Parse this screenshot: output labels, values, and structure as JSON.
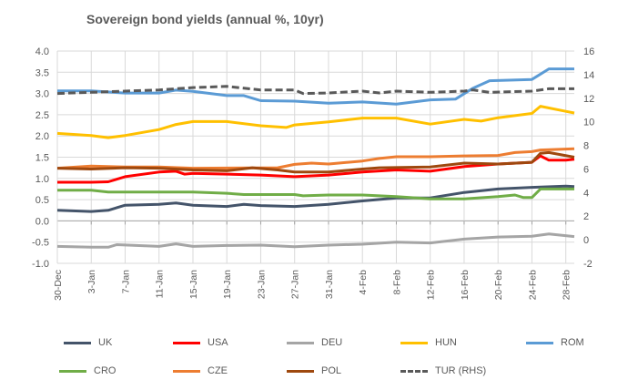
{
  "chart_data": {
    "type": "line",
    "title": "Sovereign bond yields (annual %, 10yr)",
    "xlabel": "",
    "ylabel": "",
    "x_ticks": [
      "30-Dec",
      "3-Jan",
      "7-Jan",
      "11-Jan",
      "15-Jan",
      "19-Jan",
      "23-Jan",
      "27-Jan",
      "31-Jan",
      "4-Feb",
      "8-Feb",
      "12-Feb",
      "16-Feb",
      "20-Feb",
      "24-Feb",
      "28-Feb"
    ],
    "x_range": [
      "30-Dec",
      "1-Mar"
    ],
    "ylim": [
      -1.0,
      4.0
    ],
    "y_ticks": [
      "-1.0",
      "-0.5",
      "0.0",
      "0.5",
      "1.0",
      "1.5",
      "2.0",
      "2.5",
      "3.0",
      "3.5",
      "4.0"
    ],
    "y2lim": [
      -2,
      16
    ],
    "y2_ticks": [
      "-2",
      "0",
      "2",
      "4",
      "6",
      "8",
      "10",
      "12",
      "14",
      "16"
    ],
    "grid": true,
    "legend": "bottom",
    "series": [
      {
        "name": "UK",
        "color": "#44546a",
        "axis": "left",
        "points": [
          [
            "30-Dec",
            0.25
          ],
          [
            "3-Jan",
            0.22
          ],
          [
            "5-Jan",
            0.25
          ],
          [
            "7-Jan",
            0.37
          ],
          [
            "11-Jan",
            0.39
          ],
          [
            "13-Jan",
            0.42
          ],
          [
            "15-Jan",
            0.37
          ],
          [
            "19-Jan",
            0.34
          ],
          [
            "21-Jan",
            0.39
          ],
          [
            "23-Jan",
            0.36
          ],
          [
            "27-Jan",
            0.34
          ],
          [
            "31-Jan",
            0.39
          ],
          [
            "4-Feb",
            0.47
          ],
          [
            "8-Feb",
            0.54
          ],
          [
            "12-Feb",
            0.54
          ],
          [
            "16-Feb",
            0.67
          ],
          [
            "20-Feb",
            0.75
          ],
          [
            "24-Feb",
            0.79
          ],
          [
            "28-Feb",
            0.82
          ],
          [
            "1-Mar",
            0.81
          ]
        ]
      },
      {
        "name": "USA",
        "color": "#ff0000",
        "axis": "left",
        "points": [
          [
            "30-Dec",
            0.91
          ],
          [
            "3-Jan",
            0.91
          ],
          [
            "5-Jan",
            0.92
          ],
          [
            "7-Jan",
            1.04
          ],
          [
            "11-Jan",
            1.15
          ],
          [
            "13-Jan",
            1.17
          ],
          [
            "14-Jan",
            1.1
          ],
          [
            "15-Jan",
            1.12
          ],
          [
            "19-Jan",
            1.1
          ],
          [
            "23-Jan",
            1.08
          ],
          [
            "27-Jan",
            1.04
          ],
          [
            "31-Jan",
            1.08
          ],
          [
            "4-Feb",
            1.15
          ],
          [
            "8-Feb",
            1.2
          ],
          [
            "12-Feb",
            1.17
          ],
          [
            "16-Feb",
            1.28
          ],
          [
            "20-Feb",
            1.34
          ],
          [
            "24-Feb",
            1.38
          ],
          [
            "25-Feb",
            1.53
          ],
          [
            "26-Feb",
            1.43
          ],
          [
            "28-Feb",
            1.43
          ],
          [
            "1-Mar",
            1.45
          ]
        ]
      },
      {
        "name": "DEU",
        "color": "#a5a5a5",
        "axis": "left",
        "points": [
          [
            "30-Dec",
            -0.6
          ],
          [
            "3-Jan",
            -0.62
          ],
          [
            "5-Jan",
            -0.62
          ],
          [
            "6-Jan",
            -0.56
          ],
          [
            "11-Jan",
            -0.6
          ],
          [
            "13-Jan",
            -0.54
          ],
          [
            "15-Jan",
            -0.6
          ],
          [
            "19-Jan",
            -0.58
          ],
          [
            "23-Jan",
            -0.57
          ],
          [
            "27-Jan",
            -0.61
          ],
          [
            "31-Jan",
            -0.57
          ],
          [
            "4-Feb",
            -0.55
          ],
          [
            "8-Feb",
            -0.5
          ],
          [
            "12-Feb",
            -0.52
          ],
          [
            "16-Feb",
            -0.43
          ],
          [
            "20-Feb",
            -0.38
          ],
          [
            "24-Feb",
            -0.36
          ],
          [
            "26-Feb",
            -0.31
          ],
          [
            "1-Mar",
            -0.37
          ]
        ]
      },
      {
        "name": "HUN",
        "color": "#ffc000",
        "axis": "left",
        "points": [
          [
            "30-Dec",
            2.06
          ],
          [
            "3-Jan",
            2.01
          ],
          [
            "5-Jan",
            1.96
          ],
          [
            "7-Jan",
            2.01
          ],
          [
            "11-Jan",
            2.15
          ],
          [
            "13-Jan",
            2.27
          ],
          [
            "15-Jan",
            2.34
          ],
          [
            "19-Jan",
            2.34
          ],
          [
            "23-Jan",
            2.24
          ],
          [
            "26-Jan",
            2.2
          ],
          [
            "27-Jan",
            2.26
          ],
          [
            "31-Jan",
            2.33
          ],
          [
            "4-Feb",
            2.42
          ],
          [
            "8-Feb",
            2.42
          ],
          [
            "12-Feb",
            2.28
          ],
          [
            "16-Feb",
            2.39
          ],
          [
            "18-Feb",
            2.35
          ],
          [
            "20-Feb",
            2.43
          ],
          [
            "24-Feb",
            2.53
          ],
          [
            "25-Feb",
            2.7
          ],
          [
            "28-Feb",
            2.58
          ],
          [
            "1-Mar",
            2.54
          ]
        ]
      },
      {
        "name": "ROM",
        "color": "#5b9bd5",
        "axis": "left",
        "points": [
          [
            "30-Dec",
            3.06
          ],
          [
            "3-Jan",
            3.06
          ],
          [
            "7-Jan",
            3.01
          ],
          [
            "11-Jan",
            3.01
          ],
          [
            "13-Jan",
            3.08
          ],
          [
            "15-Jan",
            3.05
          ],
          [
            "19-Jan",
            2.95
          ],
          [
            "21-Jan",
            2.95
          ],
          [
            "23-Jan",
            2.83
          ],
          [
            "27-Jan",
            2.82
          ],
          [
            "31-Jan",
            2.77
          ],
          [
            "4-Feb",
            2.8
          ],
          [
            "8-Feb",
            2.75
          ],
          [
            "12-Feb",
            2.85
          ],
          [
            "15-Feb",
            2.87
          ],
          [
            "17-Feb",
            3.12
          ],
          [
            "19-Feb",
            3.3
          ],
          [
            "24-Feb",
            3.33
          ],
          [
            "26-Feb",
            3.58
          ],
          [
            "1-Mar",
            3.58
          ]
        ]
      },
      {
        "name": "CRO",
        "color": "#70ad47",
        "axis": "left",
        "points": [
          [
            "30-Dec",
            0.72
          ],
          [
            "3-Jan",
            0.72
          ],
          [
            "5-Jan",
            0.68
          ],
          [
            "15-Jan",
            0.68
          ],
          [
            "19-Jan",
            0.65
          ],
          [
            "21-Jan",
            0.62
          ],
          [
            "27-Jan",
            0.62
          ],
          [
            "28-Jan",
            0.59
          ],
          [
            "31-Jan",
            0.61
          ],
          [
            "4-Feb",
            0.61
          ],
          [
            "8-Feb",
            0.57
          ],
          [
            "12-Feb",
            0.52
          ],
          [
            "16-Feb",
            0.52
          ],
          [
            "20-Feb",
            0.57
          ],
          [
            "22-Feb",
            0.61
          ],
          [
            "23-Feb",
            0.55
          ],
          [
            "24-Feb",
            0.55
          ],
          [
            "25-Feb",
            0.75
          ],
          [
            "1-Mar",
            0.75
          ]
        ]
      },
      {
        "name": "CZE",
        "color": "#ed7d31",
        "axis": "left",
        "points": [
          [
            "30-Dec",
            1.24
          ],
          [
            "3-Jan",
            1.29
          ],
          [
            "7-Jan",
            1.27
          ],
          [
            "11-Jan",
            1.27
          ],
          [
            "15-Jan",
            1.24
          ],
          [
            "25-Jan",
            1.25
          ],
          [
            "27-Jan",
            1.33
          ],
          [
            "29-Jan",
            1.36
          ],
          [
            "31-Jan",
            1.34
          ],
          [
            "4-Feb",
            1.41
          ],
          [
            "6-Feb",
            1.47
          ],
          [
            "8-Feb",
            1.51
          ],
          [
            "12-Feb",
            1.51
          ],
          [
            "16-Feb",
            1.53
          ],
          [
            "20-Feb",
            1.54
          ],
          [
            "22-Feb",
            1.61
          ],
          [
            "24-Feb",
            1.63
          ],
          [
            "25-Feb",
            1.67
          ],
          [
            "1-Mar",
            1.7
          ]
        ]
      },
      {
        "name": "POL",
        "color": "#9e480e",
        "axis": "left",
        "points": [
          [
            "30-Dec",
            1.24
          ],
          [
            "3-Jan",
            1.22
          ],
          [
            "7-Jan",
            1.25
          ],
          [
            "11-Jan",
            1.24
          ],
          [
            "15-Jan",
            1.2
          ],
          [
            "19-Jan",
            1.18
          ],
          [
            "22-Jan",
            1.25
          ],
          [
            "25-Jan",
            1.2
          ],
          [
            "27-Jan",
            1.15
          ],
          [
            "31-Jan",
            1.15
          ],
          [
            "4-Feb",
            1.22
          ],
          [
            "6-Feb",
            1.25
          ],
          [
            "12-Feb",
            1.27
          ],
          [
            "16-Feb",
            1.36
          ],
          [
            "20-Feb",
            1.34
          ],
          [
            "24-Feb",
            1.38
          ],
          [
            "25-Feb",
            1.59
          ],
          [
            "26-Feb",
            1.61
          ],
          [
            "1-Mar",
            1.5
          ]
        ]
      },
      {
        "name": "TUR (RHS)",
        "color": "#595959",
        "axis": "right",
        "dashed": true,
        "points": [
          [
            "30-Dec",
            12.4
          ],
          [
            "3-Jan",
            12.5
          ],
          [
            "7-Jan",
            12.6
          ],
          [
            "11-Jan",
            12.7
          ],
          [
            "15-Jan",
            12.9
          ],
          [
            "19-Jan",
            13.0
          ],
          [
            "23-Jan",
            12.7
          ],
          [
            "27-Jan",
            12.7
          ],
          [
            "28-Jan",
            12.4
          ],
          [
            "31-Jan",
            12.45
          ],
          [
            "4-Feb",
            12.6
          ],
          [
            "6-Feb",
            12.45
          ],
          [
            "8-Feb",
            12.6
          ],
          [
            "12-Feb",
            12.5
          ],
          [
            "16-Feb",
            12.6
          ],
          [
            "17-Feb",
            12.7
          ],
          [
            "19-Feb",
            12.5
          ],
          [
            "24-Feb",
            12.6
          ],
          [
            "26-Feb",
            12.8
          ],
          [
            "1-Mar",
            12.8
          ]
        ]
      }
    ]
  }
}
